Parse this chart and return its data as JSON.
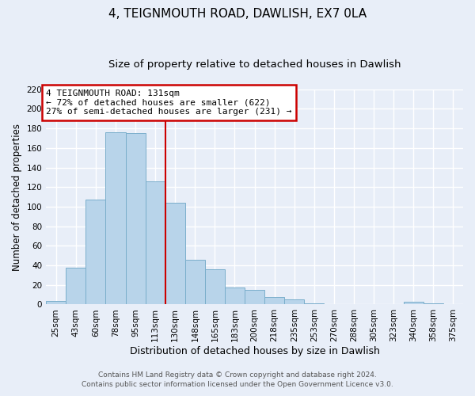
{
  "title": "4, TEIGNMOUTH ROAD, DAWLISH, EX7 0LA",
  "subtitle": "Size of property relative to detached houses in Dawlish",
  "xlabel": "Distribution of detached houses by size in Dawlish",
  "ylabel": "Number of detached properties",
  "bar_labels": [
    "25sqm",
    "43sqm",
    "60sqm",
    "78sqm",
    "95sqm",
    "113sqm",
    "130sqm",
    "148sqm",
    "165sqm",
    "183sqm",
    "200sqm",
    "218sqm",
    "235sqm",
    "253sqm",
    "270sqm",
    "288sqm",
    "305sqm",
    "323sqm",
    "340sqm",
    "358sqm",
    "375sqm"
  ],
  "bar_values": [
    4,
    38,
    107,
    176,
    175,
    126,
    104,
    46,
    36,
    17,
    15,
    8,
    5,
    1,
    0,
    0,
    0,
    0,
    3,
    1,
    0
  ],
  "bar_color": "#b8d4ea",
  "bar_edge_color": "#7aaecb",
  "vline_color": "#cc0000",
  "annotation_title": "4 TEIGNMOUTH ROAD: 131sqm",
  "annotation_line1": "← 72% of detached houses are smaller (622)",
  "annotation_line2": "27% of semi-detached houses are larger (231) →",
  "annotation_box_color": "#ffffff",
  "annotation_box_edge": "#cc0000",
  "ylim": [
    0,
    220
  ],
  "yticks": [
    0,
    20,
    40,
    60,
    80,
    100,
    120,
    140,
    160,
    180,
    200,
    220
  ],
  "footer1": "Contains HM Land Registry data © Crown copyright and database right 2024.",
  "footer2": "Contains public sector information licensed under the Open Government Licence v3.0.",
  "bg_color": "#e8eef8",
  "plot_bg_color": "#e8eef8",
  "grid_color": "#ffffff",
  "title_fontsize": 11,
  "subtitle_fontsize": 9.5,
  "ylabel_fontsize": 8.5,
  "xlabel_fontsize": 9,
  "tick_fontsize": 7.5,
  "footer_fontsize": 6.5,
  "annot_fontsize": 8
}
